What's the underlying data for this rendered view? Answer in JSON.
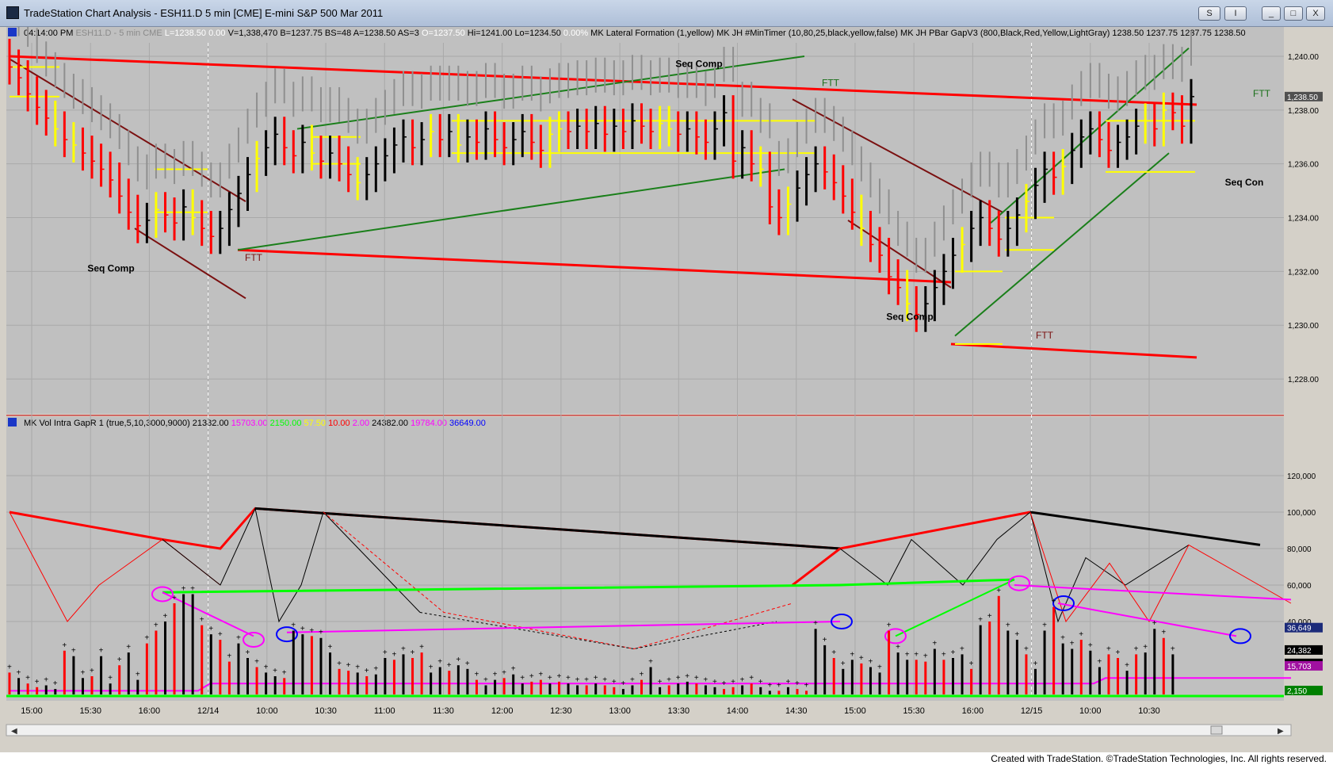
{
  "window": {
    "title": "TradeStation Chart Analysis - ESH11.D 5 min [CME] E-mini S&P 500 Mar 2011",
    "buttons": [
      "S",
      "I",
      "_",
      "□",
      "X"
    ]
  },
  "price_header": [
    {
      "text": "04:14:00 PM",
      "color": "#000000"
    },
    {
      "text": "ESH11.D - 5 min",
      "color": "#8a8a8a"
    },
    {
      "text": "CME",
      "color": "#8a8a8a"
    },
    {
      "text": "L=1238.50",
      "color": "#ffffff"
    },
    {
      "text": "0.00",
      "color": "#ffffff"
    },
    {
      "text": "V=1,338,470",
      "color": "#000000"
    },
    {
      "text": "B=1237.75",
      "color": "#000000"
    },
    {
      "text": "BS=48",
      "color": "#000000"
    },
    {
      "text": "A=1238.50",
      "color": "#000000"
    },
    {
      "text": "AS=3",
      "color": "#000000"
    },
    {
      "text": "O=1237.50",
      "color": "#ffffff"
    },
    {
      "text": "Hi=1241.00",
      "color": "#000000"
    },
    {
      "text": "Lo=1234.50",
      "color": "#000000"
    },
    {
      "text": "0.00%",
      "color": "#ffffff"
    },
    {
      "text": "MK Lateral Formation (1,yellow)",
      "color": "#000000"
    },
    {
      "text": "MK JH #MinTimer (10,80,25,black,yellow,false)",
      "color": "#000000"
    },
    {
      "text": "MK JH PBar GapV3 (800,Black,Red,Yellow,LightGray)",
      "color": "#000000"
    },
    {
      "text": "1238.50",
      "color": "#000000"
    },
    {
      "text": "1237.75",
      "color": "#000000"
    },
    {
      "text": "1237.75",
      "color": "#000000"
    },
    {
      "text": "1238.50",
      "color": "#000000"
    }
  ],
  "volume_header": [
    {
      "text": "MK Vol Intra GapR 1 (true,5,10,3000,9000)",
      "color": "#000000"
    },
    {
      "text": "21382.00",
      "color": "#000000"
    },
    {
      "text": "15703.00",
      "color": "#ff00ff"
    },
    {
      "text": "2150.00",
      "color": "#00ff00"
    },
    {
      "text": "57.50",
      "color": "#ffff00"
    },
    {
      "text": "10.00",
      "color": "#ff0000"
    },
    {
      "text": "2.00",
      "color": "#ff00ff"
    },
    {
      "text": "24382.00",
      "color": "#000000"
    },
    {
      "text": "19784.00",
      "color": "#ff00ff"
    },
    {
      "text": "36649.00",
      "color": "#0000ff"
    }
  ],
  "chart_data": [
    {
      "type": "bar",
      "description_series": "ESH11.D 5 min OHLC price bars",
      "y_axis": {
        "min": 1227.0,
        "max": 1240.5,
        "ticks": [
          "1,240.00",
          "1,238.00",
          "1,236.00",
          "1,234.00",
          "1,232.00",
          "1,230.00",
          "1,228.00"
        ],
        "tick_values": [
          1240,
          1238,
          1236,
          1234,
          1232,
          1230,
          1228
        ]
      },
      "last_price_label": "1,238.50",
      "last_price": 1238.5,
      "x_ticks": [
        "15:00",
        "15:30",
        "16:00",
        "12/14",
        "10:00",
        "10:30",
        "11:00",
        "11:30",
        "12:00",
        "12:30",
        "13:00",
        "13:30",
        "14:00",
        "14:30",
        "15:00",
        "15:30",
        "16:00",
        "12/15",
        "10:00",
        "10:30"
      ],
      "annotations": [
        "Seq Comp",
        "Seq Comp",
        "Seq Comp",
        "Seq Con",
        "FTT",
        "FTT",
        "FTT",
        "FTT"
      ],
      "bars": {
        "close": [
          1239.6,
          1239.2,
          1238.6,
          1238.1,
          1237.7,
          1237.3,
          1236.9,
          1236.7,
          1236.4,
          1236.1,
          1235.8,
          1235.4,
          1234.8,
          1234.2,
          1233.7,
          1233.9,
          1234.3,
          1234.1,
          1233.8,
          1234.4,
          1234.0,
          1233.6,
          1233.3,
          1233.6,
          1234.3,
          1234.9,
          1235.6,
          1236.2,
          1236.6,
          1237.1,
          1236.6,
          1236.3,
          1236.8,
          1236.4,
          1236.1,
          1236.4,
          1236.0,
          1235.6,
          1235.3,
          1235.6,
          1236.0,
          1236.3,
          1236.7,
          1237.0,
          1236.6,
          1236.9,
          1237.2,
          1236.9,
          1237.2,
          1236.7,
          1237.0,
          1236.8,
          1237.3,
          1236.9,
          1236.6,
          1236.9,
          1237.2,
          1236.8,
          1236.5,
          1237.1,
          1237.3,
          1237.2,
          1237.4,
          1237.2,
          1237.5,
          1237.1,
          1237.4,
          1237.2,
          1237.6,
          1237.4,
          1237.2,
          1237.5,
          1237.3,
          1237.1,
          1237.3,
          1237.0,
          1236.8,
          1237.3,
          1237.9,
          1236.1,
          1236.6,
          1236.0,
          1235.8,
          1234.4,
          1234.0,
          1234.5,
          1235.1,
          1235.6,
          1236.0,
          1235.7,
          1235.3,
          1234.8,
          1234.2,
          1233.6,
          1233.0,
          1232.6,
          1231.8,
          1231.4,
          1230.8,
          1230.4,
          1230.8,
          1231.4,
          1232.0,
          1232.6,
          1233.0,
          1233.6,
          1234.0,
          1233.6,
          1233.2,
          1233.6,
          1234.1,
          1234.6,
          1235.2,
          1235.8,
          1235.5,
          1235.9,
          1236.5,
          1237.0,
          1237.3,
          1236.9,
          1236.5,
          1236.8,
          1237.0,
          1237.4,
          1237.6,
          1237.3,
          1238.0,
          1237.9,
          1237.4,
          1238.5
        ],
        "range": 1.3
      }
    },
    {
      "type": "bar",
      "description_series": "MK Vol Intra GapR volume",
      "y_axis": {
        "min": 0,
        "max": 140000,
        "ticks": [
          "120,000",
          "100,000",
          "80,000",
          "60,000",
          "40,000"
        ],
        "tick_values": [
          120000,
          100000,
          80000,
          60000,
          40000
        ]
      },
      "value_labels": [
        {
          "text": "36,649",
          "value": 36649,
          "bg": "#1c2b7a",
          "color": "#ffffff"
        },
        {
          "text": "24,382",
          "value": 24382,
          "bg": "#000000",
          "color": "#ffffff"
        },
        {
          "text": "21,382",
          "value": 21382,
          "bg": "#000000",
          "color": "#ffffff"
        },
        {
          "text": "15,703",
          "value": 15703,
          "bg": "#a010a0",
          "color": "#ffffff"
        },
        {
          "text": "2,150",
          "value": 2150,
          "bg": "#008000",
          "color": "#ffffff"
        }
      ],
      "volumes": [
        12000,
        9000,
        6000,
        4000,
        5000,
        3000,
        24000,
        21000,
        9000,
        10000,
        21000,
        6000,
        16000,
        23000,
        8000,
        28000,
        35000,
        40000,
        50000,
        55000,
        55000,
        38000,
        33000,
        30000,
        18000,
        28000,
        20000,
        15000,
        12000,
        10000,
        9000,
        35000,
        33000,
        32000,
        31000,
        23000,
        14000,
        13000,
        12000,
        10000,
        11000,
        20000,
        19000,
        22000,
        20000,
        23000,
        12000,
        15000,
        13000,
        16000,
        14000,
        8000,
        5000,
        8000,
        9000,
        11000,
        6000,
        7000,
        8000,
        6000,
        7000,
        6000,
        5000,
        5000,
        6000,
        5000,
        4000,
        3000,
        5000,
        8000,
        15000,
        4000,
        5000,
        6000,
        7000,
        6000,
        5000,
        4000,
        3000,
        4000,
        5000,
        6000,
        4000,
        2000,
        2000,
        4000,
        3000,
        2000,
        36000,
        27000,
        20000,
        14000,
        19000,
        17000,
        15000,
        12000,
        35000,
        23000,
        19000,
        19000,
        18000,
        25000,
        19000,
        20000,
        22000,
        14000,
        38000,
        40000,
        54000,
        35000,
        30000,
        22000,
        14000,
        35000,
        48000,
        28000,
        25000,
        30000,
        24000,
        15000,
        22000,
        20000,
        13000,
        22000,
        23000,
        36000,
        31000,
        22000
      ],
      "colors_note": "red/black bars"
    }
  ],
  "footer": {
    "text": "Created with TradeStation. ©TradeStation Technologies, Inc. All rights reserved."
  },
  "colors": {
    "chart_bg": "#c0c0c0",
    "red": "#ff0000",
    "yellow": "#ffff00",
    "green": "#00ff00",
    "dark_green": "#1a7f1a",
    "maroon": "#7a1010",
    "magenta": "#ff00ff",
    "grid": "#a9a9a9"
  }
}
